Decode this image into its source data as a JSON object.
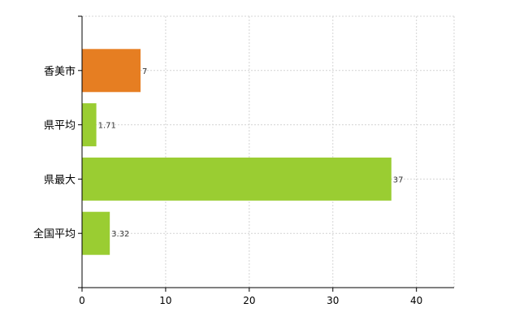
{
  "chart_data": {
    "type": "bar",
    "orientation": "horizontal",
    "categories": [
      "香美市",
      "県平均",
      "県最大",
      "全国平均"
    ],
    "values": [
      7,
      1.71,
      37,
      3.32
    ],
    "value_labels": [
      "7",
      "1.71",
      "37",
      "3.32"
    ],
    "bar_colors": [
      "#e67e22",
      "#9acd32",
      "#9acd32",
      "#9acd32"
    ],
    "title": "",
    "xlabel": "",
    "ylabel": "",
    "xlim": [
      0,
      44.5
    ],
    "x_ticks": [
      0,
      10,
      20,
      30,
      40
    ],
    "x_tick_labels": [
      "0",
      "10",
      "20",
      "30",
      "40"
    ],
    "grid": true,
    "legend": "none"
  },
  "colors": {
    "highlight": "#e67e22",
    "default_bar": "#a3cc1f",
    "grid": "#d4d4d4",
    "axis": "#000000"
  }
}
